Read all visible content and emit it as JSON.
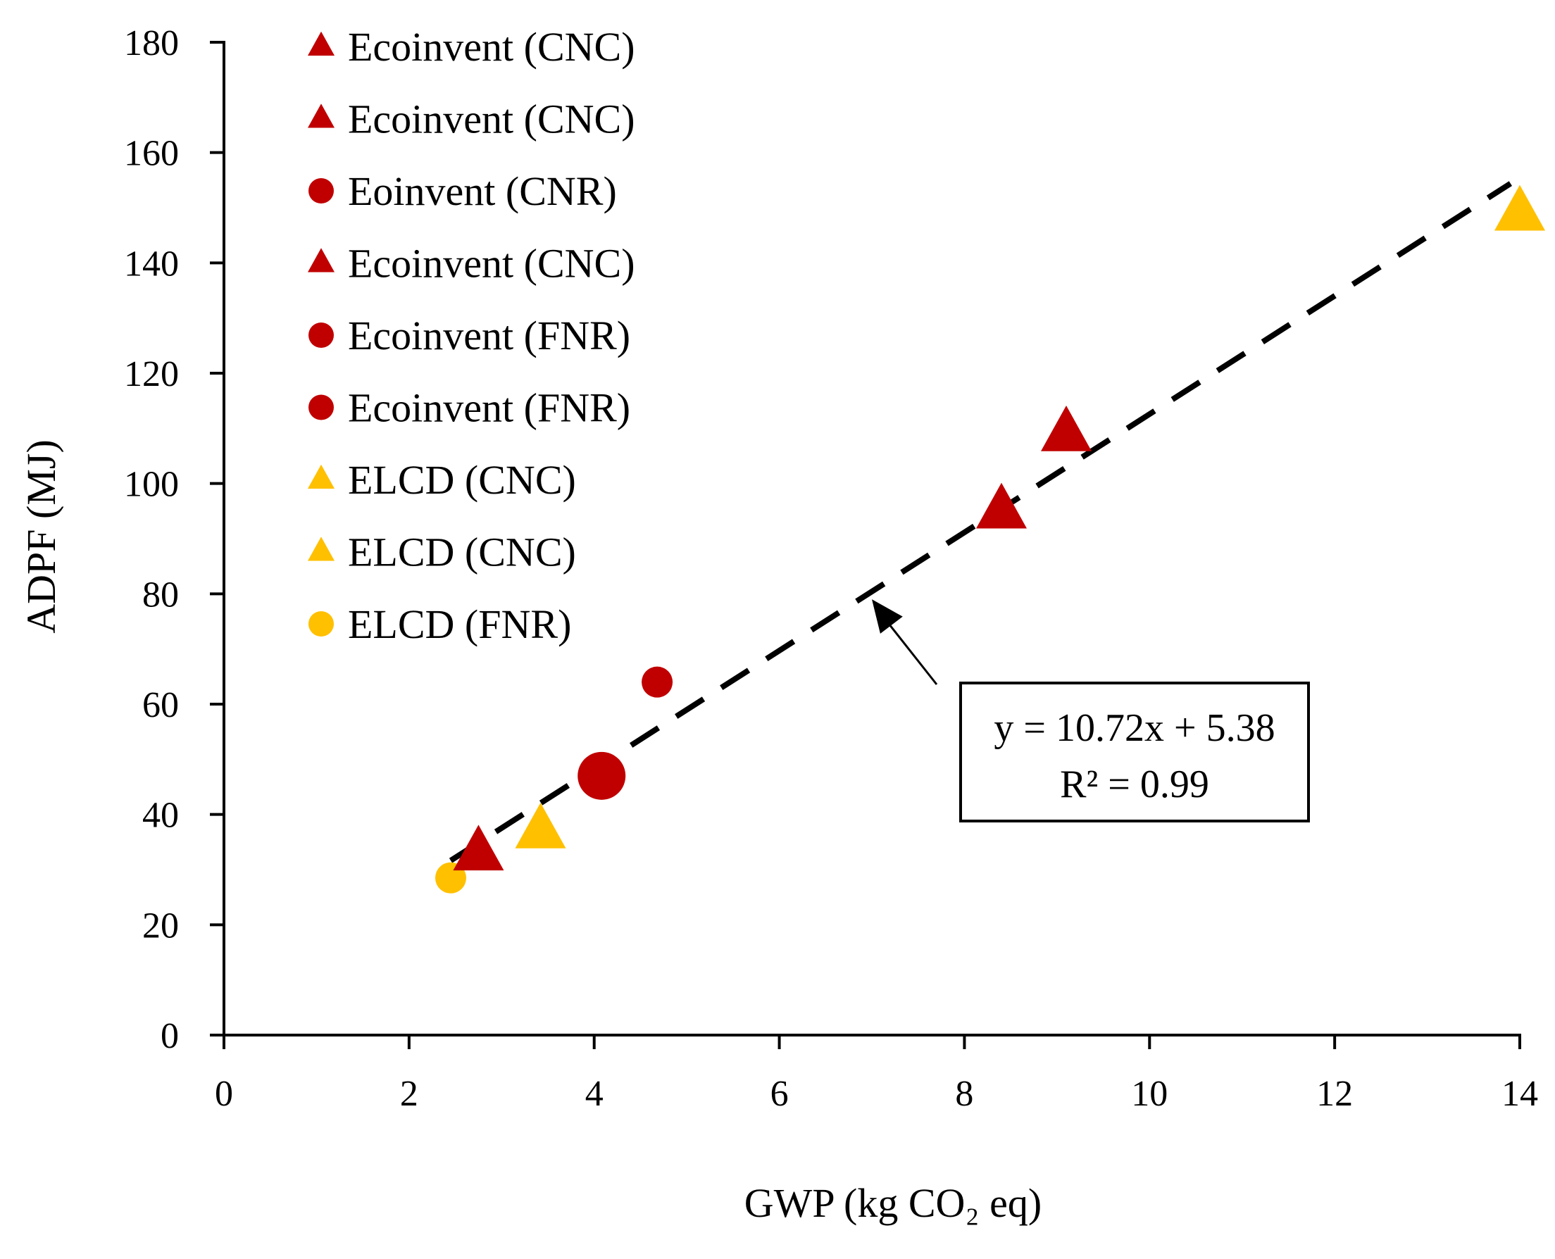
{
  "chart_data": {
    "type": "scatter",
    "title": "",
    "xlabel": "GWP (kg CO₂ eq)",
    "ylabel": "ADPF (MJ)",
    "xlim": [
      0,
      14
    ],
    "ylim": [
      0,
      180
    ],
    "x_ticks": [
      0,
      2,
      4,
      6,
      8,
      10,
      12,
      14
    ],
    "y_ticks": [
      0,
      20,
      40,
      60,
      80,
      100,
      120,
      140,
      160,
      180
    ],
    "x_tick_labels": [
      "0",
      "2",
      "4",
      "6",
      "8",
      "10",
      "12",
      "14"
    ],
    "y_tick_labels": [
      "0",
      "20",
      "40",
      "60",
      "80",
      "100",
      "120",
      "140",
      "160",
      "180"
    ],
    "grid": false,
    "legend_position": "top-left",
    "colors": {
      "ecoinvent": "#C00000",
      "elcd": "#FFC000",
      "axis": "#000000",
      "trendline": "#000000"
    },
    "series": [
      {
        "name": "Ecoinvent (CNC)",
        "marker": "triangle",
        "color": "#C00000",
        "size": "large",
        "x": 2.75,
        "y": 33
      },
      {
        "name": "Ecoinvent (CNC)",
        "marker": "triangle",
        "color": "#C00000",
        "size": "large",
        "x": 8.4,
        "y": 95
      },
      {
        "name": "Eoinvent (CNR)",
        "marker": "circle",
        "color": "#C00000",
        "size": "small",
        "x": 4.68,
        "y": 64
      },
      {
        "name": "Ecoinvent (CNC)",
        "marker": "triangle",
        "color": "#C00000",
        "size": "large",
        "x": 9.1,
        "y": 109
      },
      {
        "name": "Ecoinvent (FNR)",
        "marker": "circle",
        "color": "#C00000",
        "size": "large",
        "x": 4.08,
        "y": 47
      },
      {
        "name": "Ecoinvent (FNR)",
        "marker": "circle",
        "color": "#C00000",
        "size": "large",
        "x": 4.08,
        "y": 47
      },
      {
        "name": "ELCD (CNC)",
        "marker": "triangle",
        "color": "#FFC000",
        "size": "large",
        "x": 3.42,
        "y": 37
      },
      {
        "name": "ELCD (CNC)",
        "marker": "triangle",
        "color": "#FFC000",
        "size": "large",
        "x": 14.0,
        "y": 149
      },
      {
        "name": "ELCD (FNR)",
        "marker": "circle",
        "color": "#FFC000",
        "size": "small",
        "x": 2.45,
        "y": 28.5
      }
    ],
    "trendline": {
      "style": "dashed",
      "x_range": [
        2.45,
        13.9
      ],
      "slope": 10.72,
      "intercept": 5.38,
      "equation": "y = 10.72x + 5.38",
      "r_squared": "R² = 0.99",
      "arrow_target": [
        7.0,
        79
      ]
    }
  }
}
